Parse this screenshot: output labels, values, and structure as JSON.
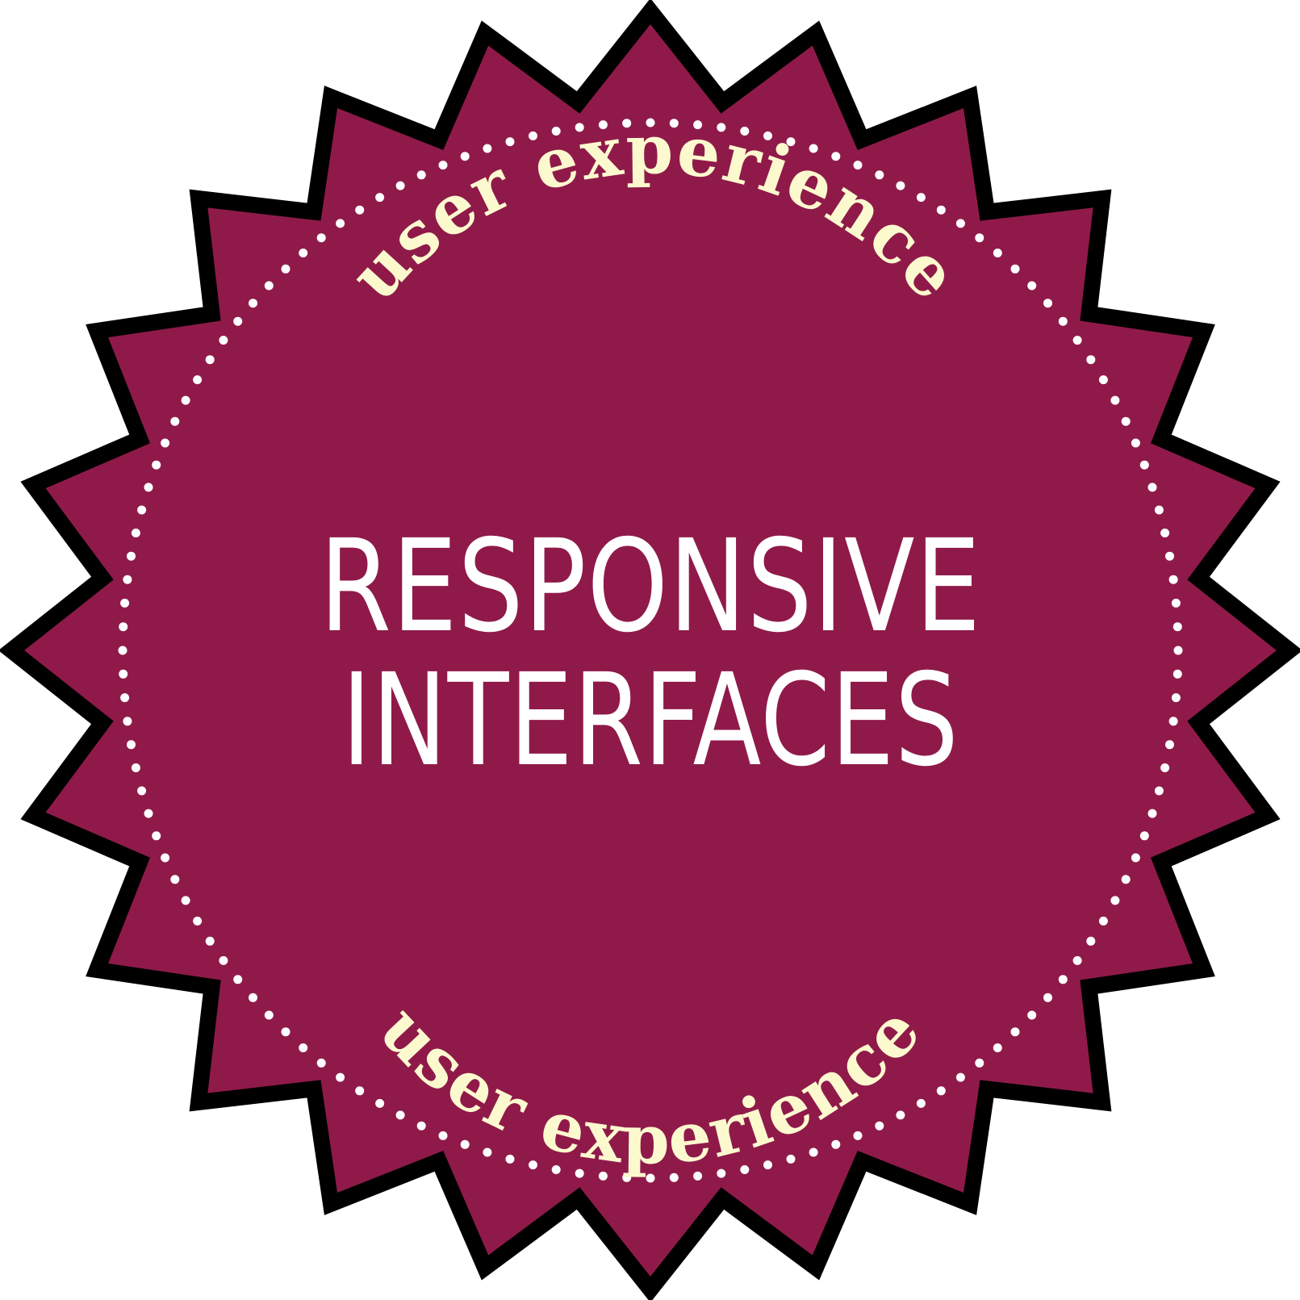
{
  "badge": {
    "top_arc_text": "user experience",
    "bottom_arc_text": "user experience",
    "title_line_1": "RESPONSIVE",
    "title_line_2": "INTERFACES",
    "fill_color": "#8f1a4a",
    "outline_color": "#000000",
    "dot_color": "#ffffff",
    "arc_text_color": "#fdf9cf",
    "title_color": "#ffffff"
  }
}
